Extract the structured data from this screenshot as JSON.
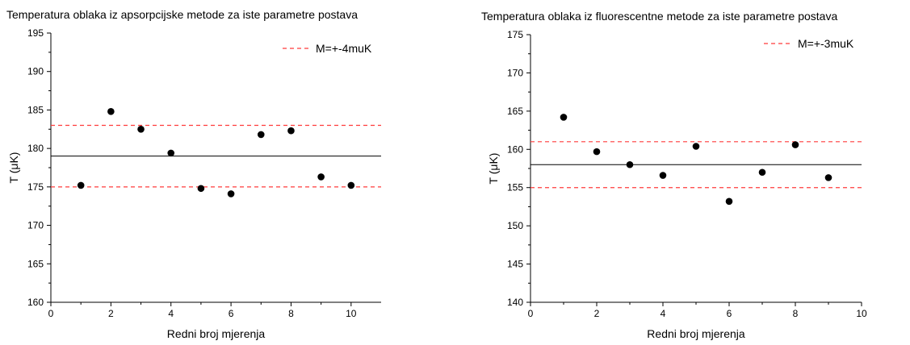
{
  "chart_data": [
    {
      "type": "scatter",
      "title": "Temperatura oblaka iz apsorpcijske metode za iste parametre postava",
      "xlabel": "Redni broj mjerenja",
      "ylabel": "T (μK)",
      "xlim": [
        0,
        11
      ],
      "ylim": [
        160,
        195
      ],
      "xticks": [
        0,
        2,
        4,
        6,
        8,
        10
      ],
      "yticks": [
        160,
        165,
        170,
        175,
        180,
        185,
        190,
        195
      ],
      "legend_position": "top-right",
      "legend_label": "M=+-4muK",
      "mean_line": 179,
      "bound_lines": [
        175,
        183
      ],
      "colors": {
        "points": "#000000",
        "mean": "#000000",
        "bounds": "#ff3b3b"
      },
      "points": {
        "x": [
          1,
          2,
          3,
          4,
          5,
          6,
          7,
          8,
          9,
          10
        ],
        "y": [
          175.2,
          184.8,
          182.5,
          179.4,
          174.8,
          174.1,
          181.8,
          182.3,
          176.3,
          175.2
        ]
      }
    },
    {
      "type": "scatter",
      "title": "Temperatura oblaka iz fluorescentne metode za iste parametre postava",
      "xlabel": "Redni broj mjerenja",
      "ylabel": "T (μK)",
      "xlim": [
        0,
        10
      ],
      "ylim": [
        140,
        175
      ],
      "xticks": [
        0,
        2,
        4,
        6,
        8,
        10
      ],
      "yticks": [
        140,
        145,
        150,
        155,
        160,
        165,
        170,
        175
      ],
      "legend_position": "top-right",
      "legend_label": "M=+-3muK",
      "mean_line": 158,
      "bound_lines": [
        155,
        161
      ],
      "colors": {
        "points": "#000000",
        "mean": "#000000",
        "bounds": "#ff3b3b"
      },
      "points": {
        "x": [
          1,
          2,
          3,
          4,
          5,
          6,
          7,
          8,
          9
        ],
        "y": [
          164.2,
          159.7,
          158.0,
          156.6,
          160.4,
          153.2,
          157.0,
          160.6,
          156.3
        ]
      }
    }
  ]
}
